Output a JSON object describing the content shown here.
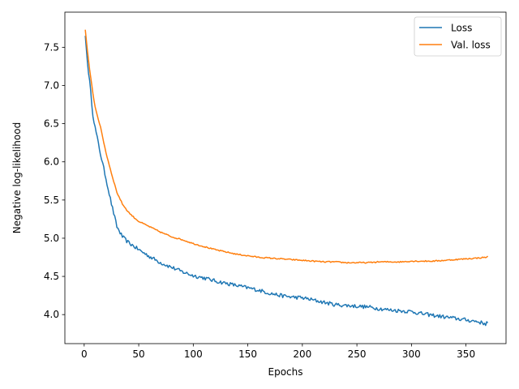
{
  "chart_data": {
    "type": "line",
    "xlabel": "Epochs",
    "ylabel": "Negative log-likelihood",
    "xlim": [
      -17.7,
      386.7
    ],
    "ylim": [
      3.62,
      7.96
    ],
    "xticks": [
      0,
      50,
      100,
      150,
      200,
      250,
      300,
      350
    ],
    "yticks": [
      4.0,
      4.5,
      5.0,
      5.5,
      6.0,
      6.5,
      7.0,
      7.5
    ],
    "xtick_labels": [
      "0",
      "50",
      "100",
      "150",
      "200",
      "250",
      "300",
      "350"
    ],
    "ytick_labels": [
      "4.0",
      "4.5",
      "5.0",
      "5.5",
      "6.0",
      "6.5",
      "7.0",
      "7.5"
    ],
    "grid": false,
    "legend_position": "top-right",
    "series": [
      {
        "name": "Loss",
        "color": "#1f77b4",
        "noise": 0.025,
        "x": [
          1,
          3,
          5,
          8,
          10,
          15,
          20,
          25,
          30,
          35,
          40,
          45,
          50,
          60,
          70,
          80,
          90,
          100,
          110,
          120,
          130,
          140,
          150,
          160,
          170,
          180,
          190,
          200,
          210,
          220,
          230,
          240,
          250,
          260,
          270,
          280,
          290,
          300,
          310,
          320,
          330,
          340,
          350,
          360,
          368,
          370
        ],
        "y": [
          7.65,
          7.3,
          7.05,
          6.62,
          6.45,
          6.1,
          5.78,
          5.45,
          5.15,
          5.02,
          4.95,
          4.9,
          4.85,
          4.76,
          4.68,
          4.62,
          4.56,
          4.51,
          4.48,
          4.44,
          4.41,
          4.38,
          4.35,
          4.32,
          4.28,
          4.25,
          4.23,
          4.22,
          4.19,
          4.16,
          4.13,
          4.12,
          4.11,
          4.1,
          4.08,
          4.06,
          4.05,
          4.04,
          4.01,
          3.99,
          3.97,
          3.95,
          3.93,
          3.91,
          3.88,
          3.9
        ]
      },
      {
        "name": "Val. loss",
        "color": "#ff7f0e",
        "noise": 0.008,
        "x": [
          1,
          3,
          5,
          8,
          10,
          15,
          20,
          25,
          30,
          35,
          40,
          45,
          50,
          60,
          70,
          80,
          90,
          100,
          110,
          120,
          130,
          140,
          150,
          160,
          170,
          180,
          190,
          200,
          210,
          220,
          230,
          240,
          250,
          260,
          270,
          280,
          290,
          300,
          310,
          320,
          330,
          340,
          350,
          360,
          368,
          370
        ],
        "y": [
          7.73,
          7.45,
          7.2,
          6.9,
          6.72,
          6.45,
          6.12,
          5.85,
          5.6,
          5.45,
          5.35,
          5.28,
          5.22,
          5.15,
          5.08,
          5.02,
          4.98,
          4.93,
          4.89,
          4.85,
          4.82,
          4.79,
          4.77,
          4.75,
          4.74,
          4.73,
          4.72,
          4.71,
          4.7,
          4.69,
          4.69,
          4.68,
          4.68,
          4.68,
          4.69,
          4.69,
          4.69,
          4.7,
          4.7,
          4.7,
          4.71,
          4.72,
          4.73,
          4.74,
          4.75,
          4.76
        ]
      }
    ]
  }
}
